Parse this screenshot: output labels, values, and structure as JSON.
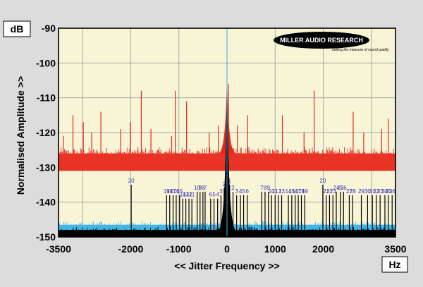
{
  "units": {
    "y": "dB",
    "x": "Hz"
  },
  "brand": {
    "name": "MILLER AUDIO RESEARCH",
    "tagline": "Setting the measure of sound quality"
  },
  "chart_data": {
    "type": "line",
    "title": "",
    "xlabel": "<< Jitter Frequency >>",
    "ylabel": "Normalised Amplitude >>",
    "xlim": [
      -3500,
      3500
    ],
    "ylim": [
      -150,
      -90
    ],
    "xticks": [
      {
        "value": -3500,
        "label": "-3500"
      },
      {
        "value": -2000,
        "label": "-2000"
      },
      {
        "value": -1000,
        "label": "-1000"
      },
      {
        "value": 0,
        "label": "0"
      },
      {
        "value": 1000,
        "label": "1000"
      },
      {
        "value": 2000,
        "label": "2000"
      },
      {
        "value": 3500,
        "label": "3500"
      }
    ],
    "yticks": [
      {
        "value": -90,
        "label": "-90"
      },
      {
        "value": -100,
        "label": "-100"
      },
      {
        "value": -110,
        "label": "-110"
      },
      {
        "value": -120,
        "label": "-120"
      },
      {
        "value": -130,
        "label": "-130"
      },
      {
        "value": -140,
        "label": "-140"
      },
      {
        "value": -150,
        "label": "-150"
      }
    ],
    "grid": true,
    "center_line_x": 0,
    "series": [
      {
        "color": "#e8281e",
        "floor": -126,
        "ceiling": -131,
        "peak": -106,
        "spurs": [
          {
            "x": -3400,
            "y": -121
          },
          {
            "x": -3200,
            "y": -115
          },
          {
            "x": -2985,
            "y": -117
          },
          {
            "x": -2810,
            "y": -120
          },
          {
            "x": -2620,
            "y": -114
          },
          {
            "x": -2210,
            "y": -119
          },
          {
            "x": -2010,
            "y": -117
          },
          {
            "x": -1780,
            "y": -108
          },
          {
            "x": -1580,
            "y": -119
          },
          {
            "x": -1150,
            "y": -121
          },
          {
            "x": -1075,
            "y": -108
          },
          {
            "x": -840,
            "y": -111
          },
          {
            "x": -370,
            "y": -120
          },
          {
            "x": -180,
            "y": -118
          },
          {
            "x": 30,
            "y": -106
          },
          {
            "x": 215,
            "y": -118
          },
          {
            "x": 430,
            "y": -115
          },
          {
            "x": 1150,
            "y": -115
          },
          {
            "x": 1600,
            "y": -120
          },
          {
            "x": 1810,
            "y": -108
          },
          {
            "x": 2620,
            "y": -114
          },
          {
            "x": 2840,
            "y": -120
          },
          {
            "x": 3210,
            "y": -119
          },
          {
            "x": 3350,
            "y": -116
          }
        ]
      },
      {
        "color": "#41b6e6",
        "floor": -146.5,
        "ceiling": -148.5,
        "peak": -130
      },
      {
        "color": "#000000",
        "floor": -148,
        "ceiling": -150,
        "peak": -107,
        "harmonics": [
          {
            "label": "1",
            "x": -7,
            "y": -133
          },
          {
            "label": "2",
            "x": -60,
            "y": -136
          },
          {
            "label": "3",
            "x": -125,
            "y": -138
          },
          {
            "label": "4",
            "x": -195,
            "y": -139
          },
          {
            "label": "5",
            "x": -270,
            "y": -139
          },
          {
            "label": "6",
            "x": -340,
            "y": -139
          },
          {
            "label": "7",
            "x": -455,
            "y": -137
          },
          {
            "label": "8",
            "x": -500,
            "y": -137
          },
          {
            "label": "9",
            "x": -560,
            "y": -137
          },
          {
            "label": "10",
            "x": -620,
            "y": -137
          },
          {
            "label": "11",
            "x": -730,
            "y": -139
          },
          {
            "label": "12",
            "x": -790,
            "y": -139
          },
          {
            "label": "13",
            "x": -855,
            "y": -139
          },
          {
            "label": "14",
            "x": -920,
            "y": -139
          },
          {
            "label": "15",
            "x": -985,
            "y": -138
          },
          {
            "label": "16",
            "x": -1055,
            "y": -138
          },
          {
            "label": "17",
            "x": -1120,
            "y": -138
          },
          {
            "label": "18",
            "x": -1190,
            "y": -138
          },
          {
            "label": "19",
            "x": -1255,
            "y": -138
          },
          {
            "label": "20",
            "x": -1990,
            "y": -135
          },
          {
            "label": "1",
            "x": 55,
            "y": -135
          },
          {
            "label": "2",
            "x": 125,
            "y": -137
          },
          {
            "label": "3",
            "x": 200,
            "y": -138
          },
          {
            "label": "4",
            "x": 280,
            "y": -138
          },
          {
            "label": "5",
            "x": 345,
            "y": -138
          },
          {
            "label": "6",
            "x": 420,
            "y": -138
          },
          {
            "label": "7",
            "x": 720,
            "y": -137
          },
          {
            "label": "8",
            "x": 790,
            "y": -137
          },
          {
            "label": "9",
            "x": 860,
            "y": -137
          },
          {
            "label": "10",
            "x": 925,
            "y": -138
          },
          {
            "label": "11",
            "x": 1000,
            "y": -138
          },
          {
            "label": "12",
            "x": 1065,
            "y": -138
          },
          {
            "label": "13",
            "x": 1135,
            "y": -138
          },
          {
            "label": "14",
            "x": 1275,
            "y": -138
          },
          {
            "label": "15",
            "x": 1345,
            "y": -138
          },
          {
            "label": "16",
            "x": 1415,
            "y": -138
          },
          {
            "label": "17",
            "x": 1480,
            "y": -138
          },
          {
            "label": "18",
            "x": 1545,
            "y": -138
          },
          {
            "label": "19",
            "x": 1615,
            "y": -138
          },
          {
            "label": "20",
            "x": 1990,
            "y": -135
          },
          {
            "label": "21",
            "x": 2060,
            "y": -138
          },
          {
            "label": "22",
            "x": 2130,
            "y": -138
          },
          {
            "label": "23",
            "x": 2200,
            "y": -138
          },
          {
            "label": "24",
            "x": 2270,
            "y": -137
          },
          {
            "label": "25",
            "x": 2355,
            "y": -137
          },
          {
            "label": "26",
            "x": 2420,
            "y": -137
          },
          {
            "label": "27",
            "x": 2540,
            "y": -138
          },
          {
            "label": "28",
            "x": 2610,
            "y": -138
          },
          {
            "label": "29",
            "x": 2790,
            "y": -138
          },
          {
            "label": "30",
            "x": 2920,
            "y": -138
          },
          {
            "label": "31",
            "x": 3020,
            "y": -138
          },
          {
            "label": "32",
            "x": 3100,
            "y": -138
          },
          {
            "label": "33",
            "x": 3180,
            "y": -138
          },
          {
            "label": "34",
            "x": 3280,
            "y": -138
          },
          {
            "label": "35",
            "x": 3350,
            "y": -138
          },
          {
            "label": "36",
            "x": 3430,
            "y": -138
          }
        ]
      }
    ]
  }
}
